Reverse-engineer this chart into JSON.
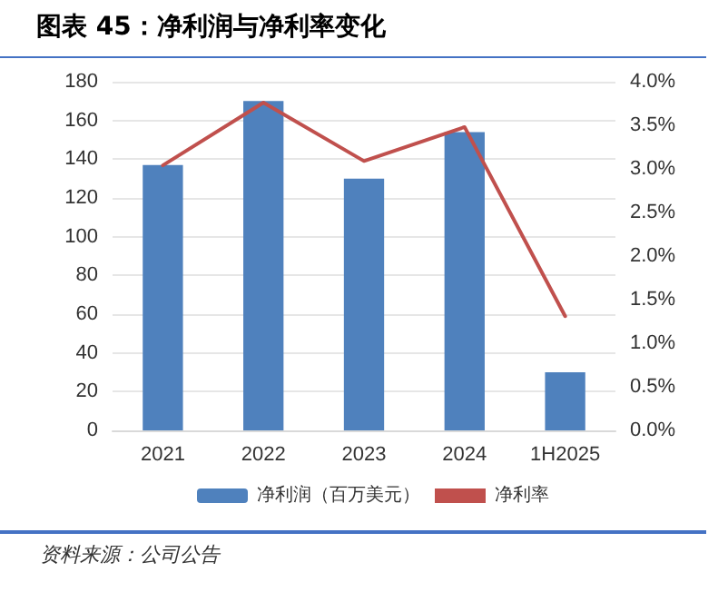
{
  "chart_data": {
    "type": "bar",
    "title": "图表 45：净利润与净利率变化",
    "categories": [
      "2021",
      "2022",
      "2023",
      "2024",
      "1H2025"
    ],
    "series": [
      {
        "name": "净利润（百万美元）",
        "color": "#4f81bd",
        "values": [
          137,
          170,
          130,
          154,
          30
        ]
      },
      {
        "name": "净利率",
        "type": "line",
        "axis": "y2",
        "color": "#c0504d",
        "values": [
          3.04,
          3.76,
          3.09,
          3.48,
          1.31
        ]
      }
    ],
    "ylim": [
      0,
      180
    ],
    "yticks": [
      0,
      20,
      40,
      60,
      80,
      100,
      120,
      140,
      160,
      180
    ],
    "y2lim": [
      0,
      4
    ],
    "y2ticks": [
      {
        "value": 0,
        "label": "0.0%"
      },
      {
        "value": 0.5,
        "label": "0.5%"
      },
      {
        "value": 1,
        "label": "1.0%"
      },
      {
        "value": 1.5,
        "label": "1.5%"
      },
      {
        "value": 2,
        "label": "2.0%"
      },
      {
        "value": 2.5,
        "label": "2.5%"
      },
      {
        "value": 3,
        "label": "3.0%"
      },
      {
        "value": 3.5,
        "label": "3.5%"
      },
      {
        "value": 4,
        "label": "4.0%"
      }
    ],
    "grid": "y",
    "legend": "bottom",
    "marker": "none",
    "line_style": "solid",
    "annotations": [
      "资料来源：公司公告"
    ]
  }
}
